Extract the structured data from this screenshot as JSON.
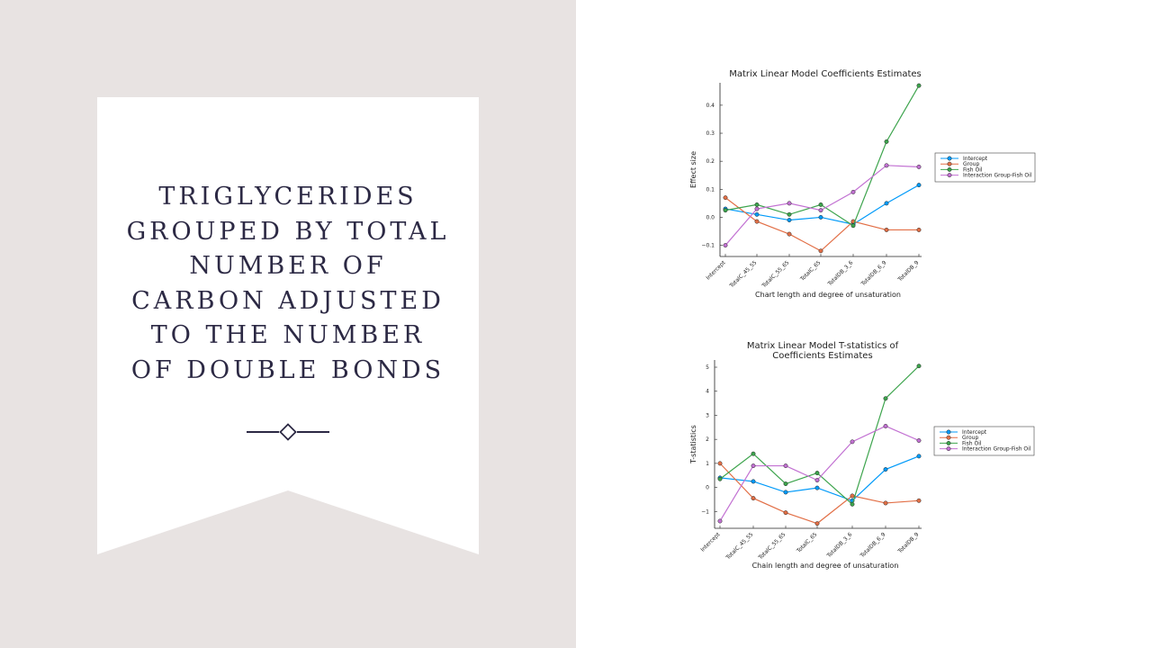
{
  "slide": {
    "title": "TRIGLYCERIDES GROUPED BY TOTAL NUMBER OF CARBON ADJUSTED TO THE NUMBER OF DOUBLE BONDS"
  },
  "colors": {
    "left_background": "#e8e3e2",
    "banner": "#ffffff",
    "title_text": "#2c2944"
  },
  "chart_data": [
    {
      "type": "line",
      "title": [
        "Matrix Linear Model Coefficients Estimates"
      ],
      "xlabel": "Chart length and degree of unsaturation",
      "ylabel": "Effect size",
      "categories": [
        "Intercept",
        "TotalC_45_55",
        "TotalC_55_65",
        "TotalC_65",
        "TotalDB_3_6",
        "TotalDB_6_9",
        "TotalDB_9"
      ],
      "ylim": [
        -0.14,
        0.48
      ],
      "yticks": [
        -0.1,
        0.0,
        0.1,
        0.2,
        0.3,
        0.4
      ],
      "ytick_labels": [
        "−0.1",
        "0.0",
        "0.1",
        "0.2",
        "0.3",
        "0.4"
      ],
      "grid": false,
      "legend": "right",
      "series": [
        {
          "name": "Intercept",
          "color": "#009af9",
          "values": [
            0.03,
            0.01,
            -0.01,
            0.0,
            -0.025,
            0.05,
            0.115
          ]
        },
        {
          "name": "Group",
          "color": "#e26f46",
          "values": [
            0.07,
            -0.015,
            -0.06,
            -0.12,
            -0.015,
            -0.045,
            -0.045
          ]
        },
        {
          "name": "Fish Oil",
          "color": "#3da44d",
          "values": [
            0.025,
            0.045,
            0.01,
            0.045,
            -0.03,
            0.27,
            0.47
          ]
        },
        {
          "name": "Interaction Group-Fish Oil",
          "color": "#c271d2",
          "values": [
            -0.1,
            0.03,
            0.05,
            0.025,
            0.09,
            0.185,
            0.18
          ]
        }
      ]
    },
    {
      "type": "line",
      "title": [
        "Matrix Linear Model T-statistics of",
        "Coefficients Estimates"
      ],
      "xlabel": "Chain length and degree of unsaturation",
      "ylabel": "T-statistics",
      "categories": [
        "Intercept",
        "TotalC_45_55",
        "TotalC_55_65",
        "TotalC_65",
        "TotalDB_3_6",
        "TotalDB_6_9",
        "TotalDB_9"
      ],
      "ylim": [
        -1.7,
        5.3
      ],
      "yticks": [
        -1,
        0,
        1,
        2,
        3,
        4,
        5
      ],
      "ytick_labels": [
        "−1",
        "0",
        "1",
        "2",
        "3",
        "4",
        "5"
      ],
      "grid": false,
      "legend": "right",
      "series": [
        {
          "name": "Intercept",
          "color": "#009af9",
          "values": [
            0.4,
            0.25,
            -0.2,
            -0.02,
            -0.55,
            0.75,
            1.3
          ]
        },
        {
          "name": "Group",
          "color": "#e26f46",
          "values": [
            1.0,
            -0.45,
            -1.05,
            -1.5,
            -0.35,
            -0.65,
            -0.55
          ]
        },
        {
          "name": "Fish Oil",
          "color": "#3da44d",
          "values": [
            0.35,
            1.4,
            0.15,
            0.6,
            -0.7,
            3.7,
            5.05
          ]
        },
        {
          "name": "Interaction Group-Fish Oil",
          "color": "#c271d2",
          "values": [
            -1.4,
            0.9,
            0.9,
            0.3,
            1.9,
            2.55,
            1.95
          ]
        }
      ]
    }
  ]
}
